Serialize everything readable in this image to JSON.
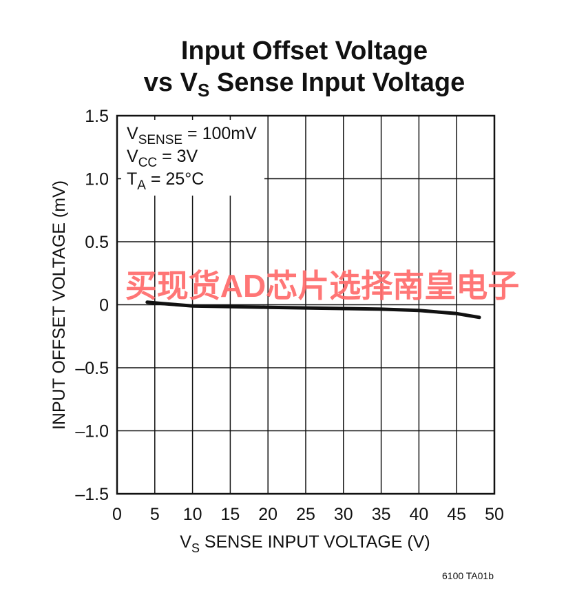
{
  "chart_data": {
    "type": "line",
    "title_line1": "Input Offset Voltage",
    "title_line2_prefix": "vs V",
    "title_line2_sub": "S",
    "title_line2_suffix": " Sense Input Voltage",
    "xlabel_prefix": "V",
    "xlabel_sub": "S",
    "xlabel_suffix": " SENSE INPUT VOLTAGE (V)",
    "ylabel": "INPUT OFFSET VOLTAGE (mV)",
    "xlim": [
      0,
      50
    ],
    "ylim": [
      -1.5,
      1.5
    ],
    "x_ticks": [
      0,
      5,
      10,
      15,
      20,
      25,
      30,
      35,
      40,
      45,
      50
    ],
    "x_tick_labels": [
      "0",
      "5",
      "10",
      "15",
      "20",
      "25",
      "30",
      "35",
      "40",
      "45",
      "50"
    ],
    "y_ticks": [
      1.5,
      1.0,
      0.5,
      0,
      -0.5,
      -1.0,
      -1.5
    ],
    "y_tick_labels": [
      "1.5",
      "1.0",
      "0.5",
      "0",
      "–0.5",
      "–1.0",
      "–1.5"
    ],
    "grid": true,
    "conditions": [
      {
        "prefix": "V",
        "sub": "SENSE",
        "suffix": " = 100mV"
      },
      {
        "prefix": "V",
        "sub": "CC",
        "suffix": " = 3V"
      },
      {
        "prefix": "T",
        "sub": "A",
        "suffix": " = 25°C"
      }
    ],
    "series": [
      {
        "x": [
          4,
          6,
          8,
          10,
          15,
          20,
          25,
          30,
          35,
          40,
          43,
          45,
          48
        ],
        "y": [
          0.02,
          0.01,
          0.0,
          -0.01,
          -0.015,
          -0.02,
          -0.025,
          -0.03,
          -0.035,
          -0.045,
          -0.06,
          -0.07,
          -0.1
        ]
      }
    ],
    "colors": {
      "line": "#111111",
      "grid": "#111111",
      "watermark": "#ff6b6b"
    }
  },
  "figure_id": "6100 TA01b",
  "watermark_text": "买现货AD芯片选择南皇电子"
}
